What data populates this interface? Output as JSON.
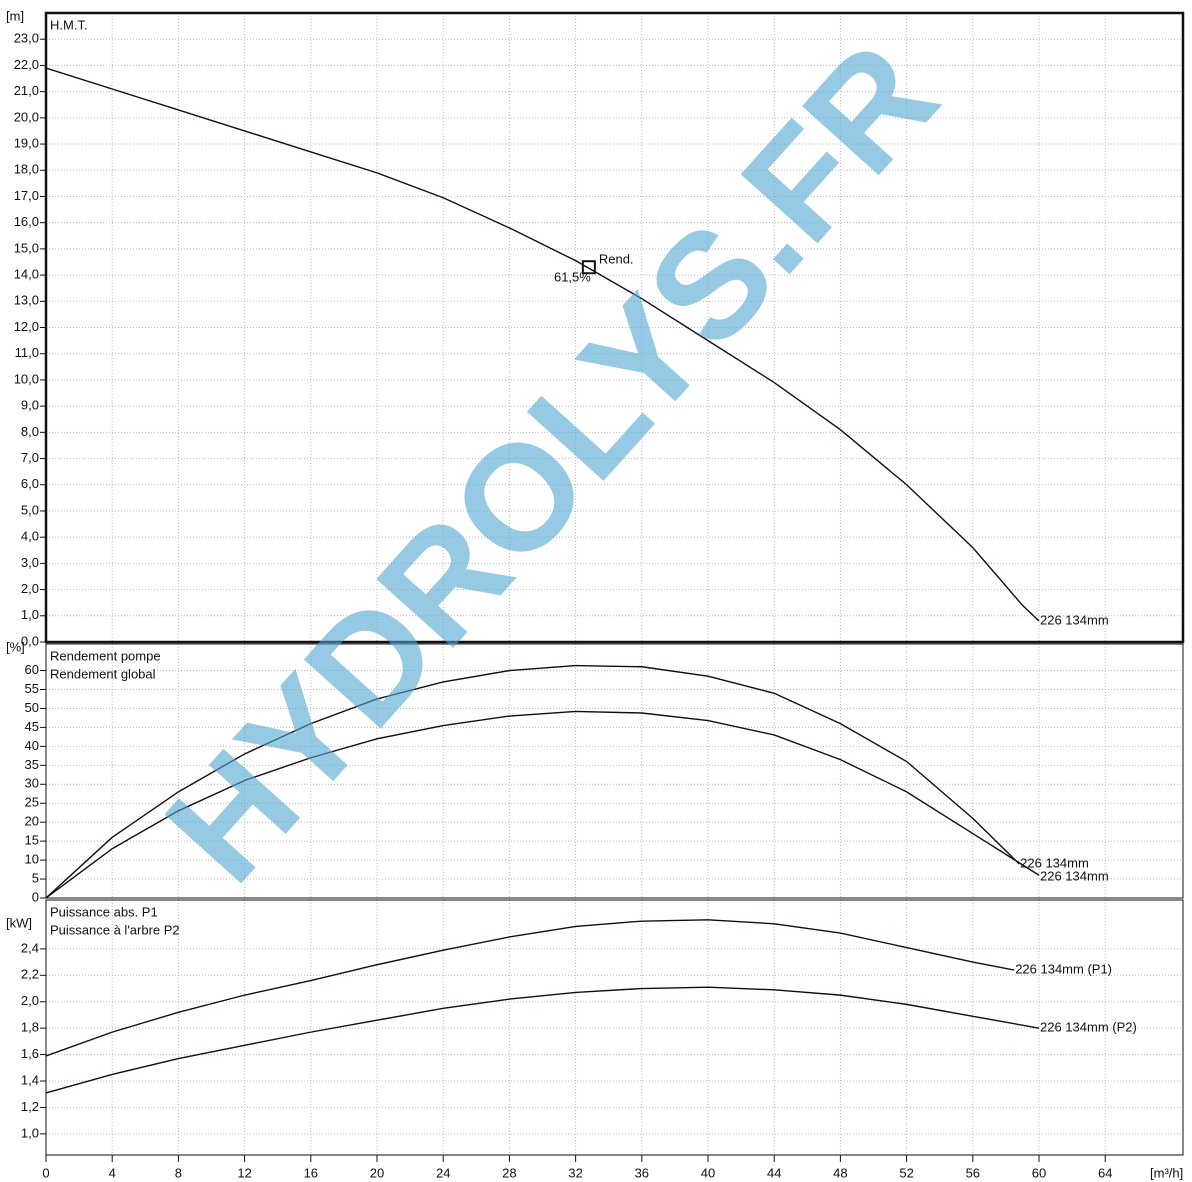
{
  "watermark": "HYDROLYS.FR",
  "chart_data": [
    {
      "type": "line",
      "ylabel": "[m]",
      "legend": [
        "H.M.T."
      ],
      "ylim": [
        0,
        24
      ],
      "yticks": [
        {
          "value": 0,
          "label": "0,0"
        },
        {
          "value": 1,
          "label": "1,0"
        },
        {
          "value": 2,
          "label": "2,0"
        },
        {
          "value": 3,
          "label": "3,0"
        },
        {
          "value": 4,
          "label": "4,0"
        },
        {
          "value": 5,
          "label": "5,0"
        },
        {
          "value": 6,
          "label": "6,0"
        },
        {
          "value": 7,
          "label": "7,0"
        },
        {
          "value": 8,
          "label": "8,0"
        },
        {
          "value": 9,
          "label": "9,0"
        },
        {
          "value": 10,
          "label": "10,0"
        },
        {
          "value": 11,
          "label": "11,0"
        },
        {
          "value": 12,
          "label": "12,0"
        },
        {
          "value": 13,
          "label": "13,0"
        },
        {
          "value": 14,
          "label": "14,0"
        },
        {
          "value": 15,
          "label": "15,0"
        },
        {
          "value": 16,
          "label": "16,0"
        },
        {
          "value": 17,
          "label": "17,0"
        },
        {
          "value": 18,
          "label": "18,0"
        },
        {
          "value": 19,
          "label": "19,0"
        },
        {
          "value": 20,
          "label": "20,0"
        },
        {
          "value": 21,
          "label": "21,0"
        },
        {
          "value": 22,
          "label": "22,0"
        },
        {
          "value": 23,
          "label": "23,0"
        }
      ],
      "grid": true,
      "series": [
        {
          "color": "#1a0a10",
          "end_label": "226 134mm",
          "x": [
            0,
            4,
            8,
            12,
            16,
            20,
            24,
            28,
            32,
            36,
            40,
            44,
            48,
            52,
            56,
            59,
            60
          ],
          "values": [
            21.9,
            21.1,
            20.3,
            19.5,
            18.7,
            17.9,
            16.95,
            15.8,
            14.55,
            13.1,
            11.5,
            9.9,
            8.1,
            6.0,
            3.6,
            1.4,
            0.8
          ]
        }
      ],
      "annotations": [
        {
          "x": 32.8,
          "y": 14.3,
          "text": "Rend.",
          "label": "61,5%"
        }
      ]
    },
    {
      "type": "line",
      "ylabel": "[%]",
      "ylim": [
        0,
        67
      ],
      "yticks": [
        0,
        5,
        10,
        15,
        20,
        25,
        30,
        35,
        40,
        45,
        50,
        55,
        60
      ],
      "grid": true,
      "series": [
        {
          "name": "Rendement pompe",
          "color": "#1a0a10",
          "end_label": "226 134mm",
          "x": [
            0,
            4,
            8,
            12,
            16,
            20,
            24,
            28,
            32,
            36,
            40,
            44,
            48,
            52,
            56,
            58.8
          ],
          "values": [
            0,
            16,
            28,
            38,
            46,
            52.5,
            57,
            60,
            61.3,
            61,
            58.5,
            54,
            46,
            36,
            21,
            9
          ]
        },
        {
          "name": "Rendement global",
          "color": "#1a0a10",
          "end_label": "226 134mm",
          "x": [
            0,
            4,
            8,
            12,
            16,
            20,
            24,
            28,
            32,
            36,
            40,
            44,
            48,
            52,
            56,
            60
          ],
          "values": [
            0,
            13,
            23,
            31,
            37,
            42,
            45.5,
            48,
            49.2,
            48.8,
            46.8,
            43,
            36.5,
            28,
            17,
            6
          ]
        }
      ]
    },
    {
      "type": "line",
      "ylabel": "[kW]",
      "xlabel": "[m³/h]",
      "xlim": [
        0,
        68.7
      ],
      "xticks": [
        0,
        4,
        8,
        12,
        16,
        20,
        24,
        28,
        32,
        36,
        40,
        44,
        48,
        52,
        56,
        60,
        64
      ],
      "ylim": [
        0.84,
        2.77
      ],
      "yticks": [
        {
          "value": 1.0,
          "label": "1,0"
        },
        {
          "value": 1.2,
          "label": "1,2"
        },
        {
          "value": 1.4,
          "label": "1,4"
        },
        {
          "value": 1.6,
          "label": "1,6"
        },
        {
          "value": 1.8,
          "label": "1,8"
        },
        {
          "value": 2.0,
          "label": "2,0"
        },
        {
          "value": 2.2,
          "label": "2,2"
        },
        {
          "value": 2.4,
          "label": "2,4"
        }
      ],
      "grid": true,
      "series": [
        {
          "name": "Puissance abs. P1",
          "color": "#1a0a10",
          "end_label": "226 134mm (P1)",
          "x": [
            0,
            4,
            8,
            12,
            16,
            20,
            24,
            28,
            32,
            36,
            40,
            44,
            48,
            52,
            56,
            58.5
          ],
          "values": [
            1.59,
            1.77,
            1.92,
            2.05,
            2.16,
            2.28,
            2.39,
            2.49,
            2.57,
            2.61,
            2.62,
            2.59,
            2.52,
            2.41,
            2.3,
            2.24
          ]
        },
        {
          "name": "Puissance à l'arbre P2",
          "color": "#1a0a10",
          "end_label": "226 134mm (P2)",
          "x": [
            0,
            4,
            8,
            12,
            16,
            20,
            24,
            28,
            32,
            36,
            40,
            44,
            48,
            52,
            56,
            60
          ],
          "values": [
            1.31,
            1.45,
            1.57,
            1.67,
            1.77,
            1.86,
            1.95,
            2.02,
            2.07,
            2.1,
            2.11,
            2.09,
            2.05,
            1.98,
            1.89,
            1.8
          ]
        }
      ]
    }
  ]
}
